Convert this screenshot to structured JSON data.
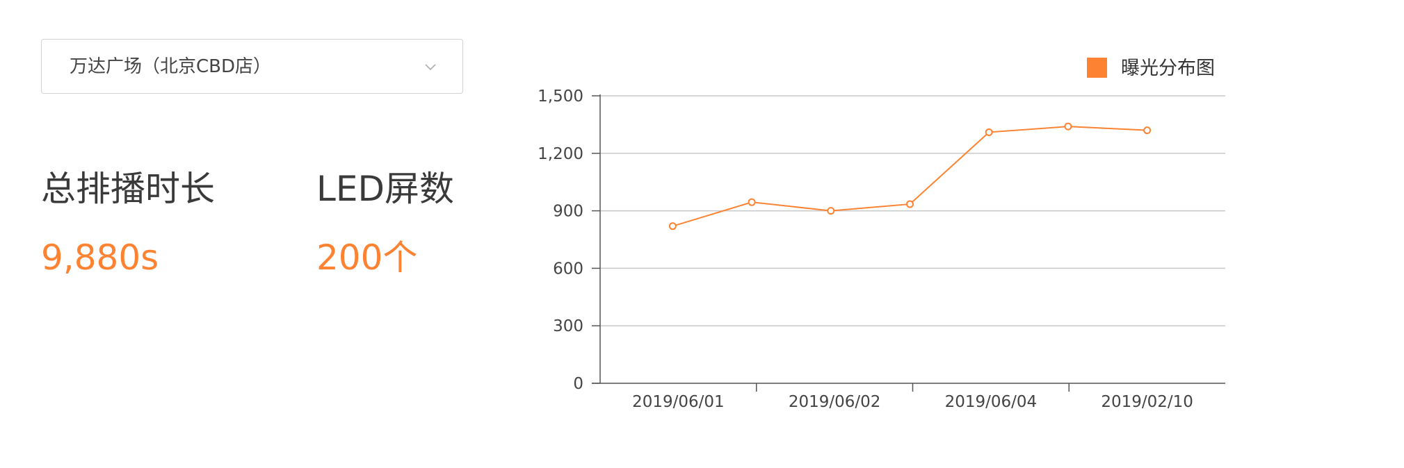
{
  "store_select": {
    "value": "万达广场（北京CBD店）",
    "icon": "chevron-down-icon"
  },
  "stats": [
    {
      "label": "总排播时长",
      "value": "9,880s"
    },
    {
      "label": "LED屏数",
      "value": "200个"
    }
  ],
  "colors": {
    "accent": "#fd8332",
    "grid": "#c9c9c9",
    "axis": "#555555"
  },
  "chart_data": {
    "type": "line",
    "title": "",
    "legend": {
      "label": "曝光分布图",
      "position": "top-right"
    },
    "x_tick_labels": [
      "2019/06/01",
      "2019/06/02",
      "2019/06/04",
      "2019/02/10"
    ],
    "y_ticks": [
      0,
      300,
      600,
      900,
      1200,
      1500
    ],
    "y_tick_labels": [
      "0",
      "300",
      "600",
      "900",
      "1,200",
      "1,500"
    ],
    "ylim": [
      0,
      1500
    ],
    "series": [
      {
        "name": "曝光分布图",
        "values": [
          820,
          945,
          900,
          935,
          1310,
          1340,
          1320
        ]
      }
    ],
    "grid": true
  }
}
